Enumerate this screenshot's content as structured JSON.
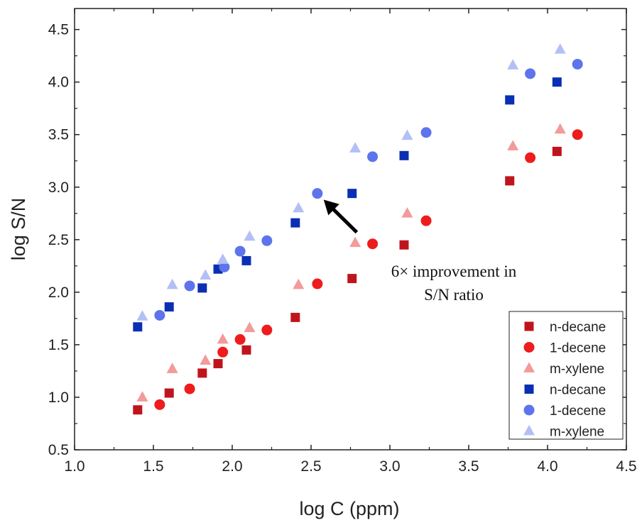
{
  "chart_data": {
    "type": "scatter",
    "xlabel": "log C (ppm)",
    "ylabel": "log S/N",
    "xlim": [
      1.0,
      4.5
    ],
    "ylim": [
      0.5,
      4.7
    ],
    "xticks": [
      "1.0",
      "1.5",
      "2.0",
      "2.5",
      "3.0",
      "3.5",
      "4.0",
      "4.5"
    ],
    "yticks": [
      "0.5",
      "1.0",
      "1.5",
      "2.0",
      "2.5",
      "3.0",
      "3.5",
      "4.0",
      "4.5"
    ],
    "grid": false,
    "legend_position": "bottom-right",
    "annotation": {
      "lines": [
        "6× improvement in",
        "S/N ratio"
      ],
      "arrow_to": [
        2.58,
        2.88
      ],
      "arrow_from": [
        2.79,
        2.57
      ]
    },
    "series": [
      {
        "name": "n-decane",
        "marker": "square",
        "color": "#c0141c",
        "points": [
          [
            1.4,
            0.88
          ],
          [
            1.6,
            1.04
          ],
          [
            1.81,
            1.23
          ],
          [
            1.91,
            1.32
          ],
          [
            2.09,
            1.45
          ],
          [
            2.4,
            1.76
          ],
          [
            2.76,
            2.13
          ],
          [
            3.09,
            2.45
          ],
          [
            3.76,
            3.06
          ],
          [
            4.06,
            3.34
          ]
        ]
      },
      {
        "name": "1-decene",
        "marker": "circle",
        "color": "#ee1c1c",
        "points": [
          [
            1.54,
            0.93
          ],
          [
            1.73,
            1.08
          ],
          [
            1.94,
            1.43
          ],
          [
            2.05,
            1.55
          ],
          [
            2.22,
            1.64
          ],
          [
            2.54,
            2.08
          ],
          [
            2.89,
            2.46
          ],
          [
            3.23,
            2.68
          ],
          [
            3.89,
            3.28
          ],
          [
            4.19,
            3.5
          ]
        ]
      },
      {
        "name": "m-xylene",
        "marker": "triangle",
        "color": "#f39a9a",
        "points": [
          [
            1.43,
            1.0
          ],
          [
            1.62,
            1.27
          ],
          [
            1.83,
            1.35
          ],
          [
            1.94,
            1.55
          ],
          [
            2.11,
            1.66
          ],
          [
            2.42,
            2.07
          ],
          [
            2.78,
            2.47
          ],
          [
            3.11,
            2.75
          ],
          [
            3.78,
            3.39
          ],
          [
            4.08,
            3.55
          ]
        ]
      },
      {
        "name": "n-decane",
        "marker": "square",
        "color": "#0a2fb4",
        "points": [
          [
            1.4,
            1.67
          ],
          [
            1.6,
            1.86
          ],
          [
            1.81,
            2.04
          ],
          [
            1.91,
            2.22
          ],
          [
            2.09,
            2.3
          ],
          [
            2.4,
            2.66
          ],
          [
            2.76,
            2.94
          ],
          [
            3.09,
            3.3
          ],
          [
            3.76,
            3.83
          ],
          [
            4.06,
            4.0
          ]
        ]
      },
      {
        "name": "1-decene",
        "marker": "circle",
        "color": "#5d74ec",
        "points": [
          [
            1.54,
            1.78
          ],
          [
            1.73,
            2.06
          ],
          [
            1.95,
            2.24
          ],
          [
            2.05,
            2.39
          ],
          [
            2.22,
            2.49
          ],
          [
            2.54,
            2.94
          ],
          [
            2.89,
            3.29
          ],
          [
            3.23,
            3.52
          ],
          [
            3.89,
            4.08
          ],
          [
            4.19,
            4.17
          ]
        ]
      },
      {
        "name": "m-xylene",
        "marker": "triangle",
        "color": "#b4bff5",
        "points": [
          [
            1.43,
            1.77
          ],
          [
            1.62,
            2.07
          ],
          [
            1.83,
            2.16
          ],
          [
            1.94,
            2.31
          ],
          [
            2.11,
            2.53
          ],
          [
            2.42,
            2.8
          ],
          [
            2.78,
            3.37
          ],
          [
            3.11,
            3.49
          ],
          [
            3.78,
            4.16
          ],
          [
            4.08,
            4.31
          ]
        ]
      }
    ]
  }
}
